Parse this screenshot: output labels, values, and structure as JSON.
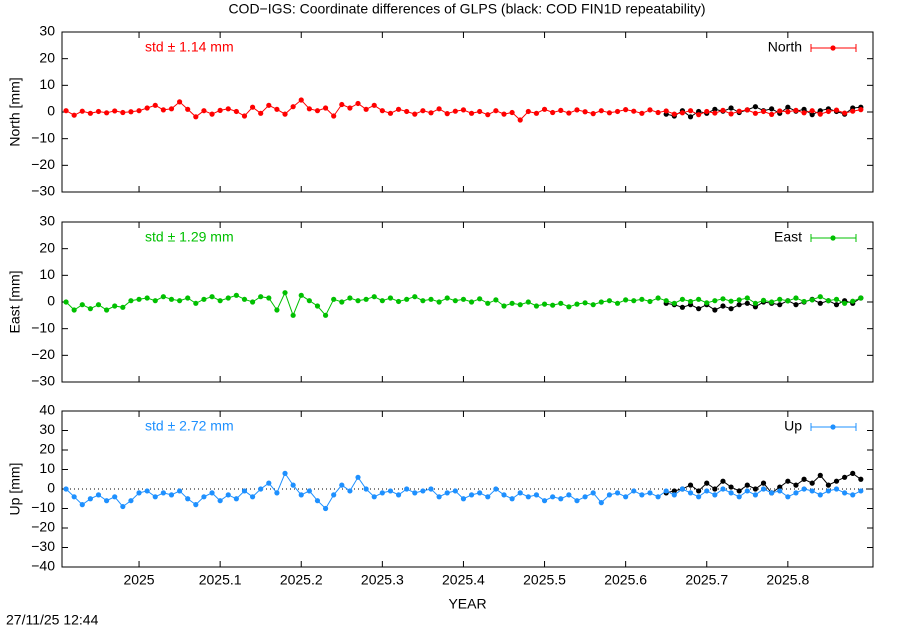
{
  "footer": "27/11/25 12:44",
  "chart_data": [
    {
      "type": "line",
      "title": "COD−IGS: Coordinate differences of GLPS (black: COD FIN1D repeatability)",
      "ylabel": "North [mm]",
      "annotation": "std ± 1.14 mm",
      "ylim": [
        -30,
        30
      ],
      "yticks": [
        {
          "value": -30,
          "label": "−30"
        },
        {
          "value": -20,
          "label": "−20"
        },
        {
          "value": -10,
          "label": "−10"
        },
        0,
        10,
        20,
        30
      ],
      "x": [
        2024.91,
        2024.92,
        2024.93,
        2024.94,
        2024.95,
        2024.96,
        2024.97,
        2024.98,
        2024.99,
        2025.0,
        2025.01,
        2025.02,
        2025.03,
        2025.04,
        2025.05,
        2025.06,
        2025.07,
        2025.08,
        2025.09,
        2025.1,
        2025.11,
        2025.12,
        2025.13,
        2025.14,
        2025.15,
        2025.16,
        2025.17,
        2025.18,
        2025.19,
        2025.2,
        2025.21,
        2025.22,
        2025.23,
        2025.24,
        2025.25,
        2025.26,
        2025.27,
        2025.28,
        2025.29,
        2025.3,
        2025.31,
        2025.32,
        2025.33,
        2025.34,
        2025.35,
        2025.36,
        2025.37,
        2025.38,
        2025.39,
        2025.4,
        2025.41,
        2025.42,
        2025.43,
        2025.44,
        2025.45,
        2025.46,
        2025.47,
        2025.48,
        2025.49,
        2025.5,
        2025.51,
        2025.52,
        2025.53,
        2025.54,
        2025.55,
        2025.56,
        2025.57,
        2025.58,
        2025.59,
        2025.6,
        2025.61,
        2025.62,
        2025.63,
        2025.64,
        2025.65,
        2025.66,
        2025.67,
        2025.68,
        2025.69,
        2025.7,
        2025.71,
        2025.72,
        2025.73,
        2025.74,
        2025.75,
        2025.76,
        2025.77,
        2025.78,
        2025.79,
        2025.8,
        2025.81,
        2025.82,
        2025.83,
        2025.84,
        2025.85,
        2025.86,
        2025.87,
        2025.88,
        2025.89
      ],
      "series": [
        {
          "color": "#000000",
          "x": [
            2025.65,
            2025.66,
            2025.67,
            2025.68,
            2025.69,
            2025.7,
            2025.71,
            2025.72,
            2025.73,
            2025.74,
            2025.75,
            2025.76,
            2025.77,
            2025.78,
            2025.79,
            2025.8,
            2025.81,
            2025.82,
            2025.83,
            2025.84,
            2025.85,
            2025.86,
            2025.87,
            2025.88,
            2025.89
          ],
          "values": [
            -0.8,
            -1.5,
            0.5,
            -1.8,
            0.2,
            -0.5,
            1.0,
            0.3,
            1.5,
            -0.2,
            0.8,
            2.0,
            0.5,
            1.2,
            -0.5,
            1.8,
            0.3,
            1.0,
            -1.0,
            0.5,
            1.2,
            0.2,
            -0.8,
            1.5,
            1.8
          ]
        },
        {
          "name": "North",
          "color": "#ff0000",
          "values": [
            0.5,
            -1.2,
            0.3,
            -0.5,
            0.2,
            -0.3,
            0.4,
            -0.2,
            0.1,
            0.5,
            1.5,
            2.5,
            0.8,
            1.2,
            3.8,
            1.0,
            -1.8,
            0.5,
            -0.8,
            0.6,
            1.2,
            0.2,
            -1.5,
            1.8,
            -0.5,
            2.5,
            1.0,
            -0.8,
            2.0,
            4.5,
            1.2,
            0.5,
            1.5,
            -1.5,
            2.8,
            1.5,
            3.2,
            1.0,
            2.5,
            0.5,
            -0.5,
            1.0,
            0.2,
            -0.8,
            0.5,
            -0.3,
            1.2,
            -0.6,
            0.3,
            0.8,
            -0.5,
            0.2,
            -1.0,
            0.5,
            -0.8,
            -0.2,
            -3.0,
            0.2,
            -0.5,
            1.0,
            -0.2,
            0.6,
            -0.4,
            0.8,
            0.1,
            -0.6,
            0.5,
            -0.3,
            0.2,
            0.9,
            0.3,
            -0.5,
            0.8,
            -0.2,
            0.4,
            -0.8,
            -0.3,
            0.5,
            -1.0,
            0.2,
            -0.4,
            0.6,
            -0.7,
            0.3,
            0.8,
            -0.5,
            0.2,
            -0.9,
            0.4,
            0.1,
            0.6,
            -0.3,
            0.5,
            -0.8,
            0.2,
            0.7,
            -0.4,
            0.3,
            0.9
          ]
        }
      ]
    },
    {
      "type": "line",
      "ylabel": "East [mm]",
      "annotation": "std ± 1.29 mm",
      "ylim": [
        -30,
        30
      ],
      "yticks": [
        {
          "value": -30,
          "label": "−30"
        },
        {
          "value": -20,
          "label": "−20"
        },
        {
          "value": -10,
          "label": "−10"
        },
        0,
        10,
        20,
        30
      ],
      "x": [
        2024.91,
        2024.92,
        2024.93,
        2024.94,
        2024.95,
        2024.96,
        2024.97,
        2024.98,
        2024.99,
        2025.0,
        2025.01,
        2025.02,
        2025.03,
        2025.04,
        2025.05,
        2025.06,
        2025.07,
        2025.08,
        2025.09,
        2025.1,
        2025.11,
        2025.12,
        2025.13,
        2025.14,
        2025.15,
        2025.16,
        2025.17,
        2025.18,
        2025.19,
        2025.2,
        2025.21,
        2025.22,
        2025.23,
        2025.24,
        2025.25,
        2025.26,
        2025.27,
        2025.28,
        2025.29,
        2025.3,
        2025.31,
        2025.32,
        2025.33,
        2025.34,
        2025.35,
        2025.36,
        2025.37,
        2025.38,
        2025.39,
        2025.4,
        2025.41,
        2025.42,
        2025.43,
        2025.44,
        2025.45,
        2025.46,
        2025.47,
        2025.48,
        2025.49,
        2025.5,
        2025.51,
        2025.52,
        2025.53,
        2025.54,
        2025.55,
        2025.56,
        2025.57,
        2025.58,
        2025.59,
        2025.6,
        2025.61,
        2025.62,
        2025.63,
        2025.64,
        2025.65,
        2025.66,
        2025.67,
        2025.68,
        2025.69,
        2025.7,
        2025.71,
        2025.72,
        2025.73,
        2025.74,
        2025.75,
        2025.76,
        2025.77,
        2025.78,
        2025.79,
        2025.8,
        2025.81,
        2025.82,
        2025.83,
        2025.84,
        2025.85,
        2025.86,
        2025.87,
        2025.88,
        2025.89
      ],
      "series": [
        {
          "color": "#000000",
          "x": [
            2025.65,
            2025.66,
            2025.67,
            2025.68,
            2025.69,
            2025.7,
            2025.71,
            2025.72,
            2025.73,
            2025.74,
            2025.75,
            2025.76,
            2025.77,
            2025.78,
            2025.79,
            2025.8,
            2025.81,
            2025.82,
            2025.83,
            2025.84,
            2025.85,
            2025.86,
            2025.87,
            2025.88,
            2025.89
          ],
          "values": [
            -0.5,
            -1,
            -2,
            -1,
            -2.5,
            -1,
            -3,
            -1.5,
            -2.5,
            -1,
            -0.5,
            -1.8,
            0,
            -0.5,
            -1,
            0.5,
            -1,
            0,
            1,
            -0.5,
            0.5,
            -1,
            0.5,
            -0.5,
            1.5
          ]
        },
        {
          "name": "East",
          "color": "#00c000",
          "values": [
            0,
            -3,
            -1,
            -2.5,
            -1,
            -3,
            -1.5,
            -2,
            0.5,
            1,
            1.5,
            0.5,
            2,
            1,
            0.5,
            1.5,
            -0.5,
            1,
            2,
            0.5,
            1.5,
            2.5,
            1,
            0,
            2,
            1.5,
            -3,
            3.5,
            -5,
            2.5,
            0.5,
            -1.5,
            -5,
            1,
            0,
            1.5,
            0.5,
            1,
            2,
            0.5,
            1.5,
            0.2,
            1,
            2,
            0.5,
            1,
            0,
            1.5,
            0.5,
            1,
            0,
            1.2,
            -0.5,
            0.8,
            -1.5,
            -0.5,
            -1,
            0,
            -1.5,
            -0.8,
            -1.2,
            -0.5,
            -1.8,
            -0.8,
            -0.3,
            -1,
            0,
            0.5,
            -0.5,
            0.8,
            0.5,
            1,
            0.2,
            1.5,
            0.5,
            -0.5,
            1,
            0.2,
            1,
            -0.3,
            0.5,
            1.2,
            0.3,
            0.8,
            1.5,
            -0.5,
            0.6,
            0,
            1,
            0.4,
            1.5,
            0.2,
            0.8,
            2,
            0.5,
            1,
            -0.5,
            0.3,
            1.5
          ]
        }
      ]
    },
    {
      "type": "line",
      "ylabel": "Up [mm]",
      "annotation": "std ± 2.72 mm",
      "xlabel": "YEAR",
      "zero_line": true,
      "xlim": [
        2024.905,
        2025.905
      ],
      "xticks": [
        2025,
        2025.1,
        2025.2,
        2025.3,
        2025.4,
        2025.5,
        2025.6,
        2025.7,
        2025.8
      ],
      "ylim": [
        -40,
        40
      ],
      "yticks": [
        {
          "value": -40,
          "label": "−40"
        },
        {
          "value": -30,
          "label": "−30"
        },
        {
          "value": -20,
          "label": "−20"
        },
        {
          "value": -10,
          "label": "−10"
        },
        0,
        10,
        20,
        30,
        40
      ],
      "x": [
        2024.91,
        2024.92,
        2024.93,
        2024.94,
        2024.95,
        2024.96,
        2024.97,
        2024.98,
        2024.99,
        2025.0,
        2025.01,
        2025.02,
        2025.03,
        2025.04,
        2025.05,
        2025.06,
        2025.07,
        2025.08,
        2025.09,
        2025.1,
        2025.11,
        2025.12,
        2025.13,
        2025.14,
        2025.15,
        2025.16,
        2025.17,
        2025.18,
        2025.19,
        2025.2,
        2025.21,
        2025.22,
        2025.23,
        2025.24,
        2025.25,
        2025.26,
        2025.27,
        2025.28,
        2025.29,
        2025.3,
        2025.31,
        2025.32,
        2025.33,
        2025.34,
        2025.35,
        2025.36,
        2025.37,
        2025.38,
        2025.39,
        2025.4,
        2025.41,
        2025.42,
        2025.43,
        2025.44,
        2025.45,
        2025.46,
        2025.47,
        2025.48,
        2025.49,
        2025.5,
        2025.51,
        2025.52,
        2025.53,
        2025.54,
        2025.55,
        2025.56,
        2025.57,
        2025.58,
        2025.59,
        2025.6,
        2025.61,
        2025.62,
        2025.63,
        2025.64,
        2025.65,
        2025.66,
        2025.67,
        2025.68,
        2025.69,
        2025.7,
        2025.71,
        2025.72,
        2025.73,
        2025.74,
        2025.75,
        2025.76,
        2025.77,
        2025.78,
        2025.79,
        2025.8,
        2025.81,
        2025.82,
        2025.83,
        2025.84,
        2025.85,
        2025.86,
        2025.87,
        2025.88,
        2025.89
      ],
      "series": [
        {
          "color": "#000000",
          "x": [
            2025.65,
            2025.66,
            2025.67,
            2025.68,
            2025.69,
            2025.7,
            2025.71,
            2025.72,
            2025.73,
            2025.74,
            2025.75,
            2025.76,
            2025.77,
            2025.78,
            2025.79,
            2025.8,
            2025.81,
            2025.82,
            2025.83,
            2025.84,
            2025.85,
            2025.86,
            2025.87,
            2025.88,
            2025.89
          ],
          "values": [
            -2,
            -1,
            0,
            2,
            -1,
            3,
            0,
            4,
            1,
            -1,
            2,
            0,
            3,
            -2,
            1,
            4,
            2,
            5,
            3,
            7,
            2,
            4,
            6,
            8,
            5
          ]
        },
        {
          "name": "Up",
          "color": "#1e90ff",
          "values": [
            0,
            -4,
            -8,
            -5,
            -3,
            -6,
            -4,
            -9,
            -6,
            -2,
            -1,
            -4,
            -2,
            -3,
            -1,
            -5,
            -8,
            -4,
            -2,
            -6,
            -3,
            -5,
            -1,
            -4,
            0,
            3,
            -2,
            8,
            2,
            -3,
            -1,
            -6,
            -10,
            -3,
            2,
            -1,
            6,
            0,
            -4,
            -2,
            -1,
            -3,
            0,
            -2,
            -1,
            0,
            -4,
            -2,
            -1,
            -5,
            -3,
            -2,
            -4,
            0,
            -3,
            -5,
            -2,
            -4,
            -3,
            -6,
            -4,
            -5,
            -3,
            -6,
            -4,
            -2,
            -7,
            -3,
            -2,
            -4,
            -1,
            -3,
            -2,
            -4,
            -1,
            -3,
            0,
            -2,
            -4,
            -1,
            -3,
            0,
            -2,
            -4,
            -1,
            -3,
            0,
            -2,
            -1,
            -4,
            -2,
            0,
            -1,
            -3,
            -1,
            0,
            -2,
            -3,
            -1
          ]
        }
      ]
    }
  ]
}
